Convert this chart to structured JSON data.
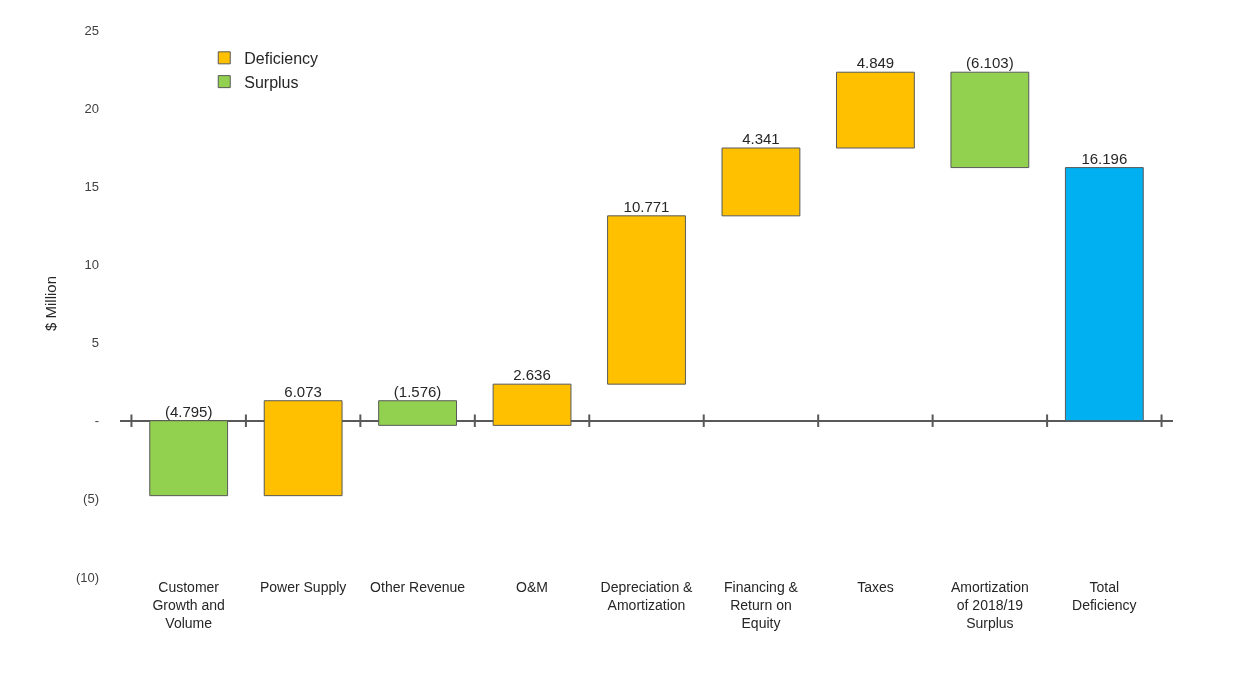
{
  "chart_data": {
    "type": "bar",
    "ylabel": "$ Million",
    "categories": [
      "Customer Growth and Volume",
      "Power Supply",
      "Other Revenue",
      "O&M",
      "Depreciation & Amortization",
      "Financing & Return on Equity",
      "Taxes",
      "Amortization of 2018/19 Surplus",
      "Total Deficiency"
    ],
    "series": [
      {
        "name": "Deficiency",
        "color": "#ffc000",
        "values": [
          null,
          6.073,
          null,
          2.636,
          10.771,
          4.341,
          4.849,
          null,
          null
        ],
        "base": [
          null,
          -4.795,
          null,
          -0.298,
          2.338,
          13.109,
          17.45,
          null,
          null
        ],
        "value_labels": [
          null,
          "6.073",
          null,
          "2.636",
          "10.771",
          "4.341",
          "4.849",
          null,
          null
        ]
      },
      {
        "name": "Surplus",
        "color": "#92d050",
        "values": [
          -4.795,
          null,
          -1.576,
          null,
          null,
          null,
          null,
          -6.103,
          null
        ],
        "base": [
          0,
          null,
          1.278,
          null,
          null,
          null,
          null,
          22.299,
          null
        ],
        "value_labels": [
          "(4.795)",
          null,
          "(1.576)",
          null,
          null,
          null,
          null,
          "(6.103)",
          null
        ]
      },
      {
        "color": "#00b0f0",
        "values": [
          null,
          null,
          null,
          null,
          null,
          null,
          null,
          null,
          16.196
        ],
        "base": [
          null,
          null,
          null,
          null,
          null,
          null,
          null,
          null,
          0
        ],
        "value_labels": [
          null,
          null,
          null,
          null,
          null,
          null,
          null,
          null,
          "16.196"
        ]
      }
    ],
    "ylim": [
      -10,
      25
    ],
    "yticks": [
      {
        "value": -10,
        "label": "(10)"
      },
      {
        "value": -5,
        "label": "(5)"
      },
      {
        "value": 0,
        "label": "-"
      },
      5,
      10,
      15,
      20,
      25
    ],
    "legend": "top left"
  }
}
